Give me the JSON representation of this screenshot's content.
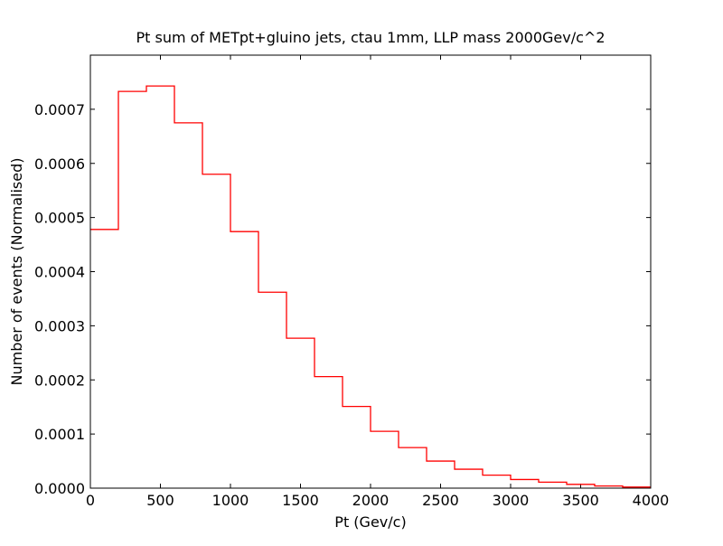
{
  "chart_data": {
    "type": "step",
    "title": "Pt sum of METpt+gluino jets, ctau 1mm, LLP mass 2000Gev/c^2",
    "xlabel": "Pt (Gev/c)",
    "ylabel": "Number of events (Normalised)",
    "xlim": [
      0,
      4000
    ],
    "ylim": [
      0,
      0.0008
    ],
    "xticks": [
      0,
      500,
      1000,
      1500,
      2000,
      2500,
      3000,
      3500,
      4000
    ],
    "xtick_labels": [
      "0",
      "500",
      "1000",
      "1500",
      "2000",
      "2500",
      "3000",
      "3500",
      "4000"
    ],
    "yticks": [
      0,
      0.0001,
      0.0002,
      0.0003,
      0.0004,
      0.0005,
      0.0006,
      0.0007
    ],
    "ytick_labels": [
      "0.0000",
      "0.0001",
      "0.0002",
      "0.0003",
      "0.0004",
      "0.0005",
      "0.0006",
      "0.0007"
    ],
    "grid": false,
    "line_color": "#ff0000",
    "bin_edges": [
      0,
      200,
      400,
      600,
      800,
      1000,
      1200,
      1400,
      1600,
      1800,
      2000,
      2200,
      2400,
      2600,
      2800,
      3000,
      3200,
      3400,
      3600,
      3800,
      4000
    ],
    "values": [
      0.000478,
      0.000733,
      0.000743,
      0.000675,
      0.00058,
      0.000474,
      0.000362,
      0.000277,
      0.000206,
      0.000151,
      0.000105,
      7.5e-05,
      5e-05,
      3.5e-05,
      2.4e-05,
      1.6e-05,
      1.1e-05,
      7e-06,
      4e-06,
      2e-06
    ]
  }
}
